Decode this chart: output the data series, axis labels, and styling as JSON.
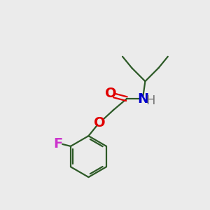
{
  "background_color": "#ebebeb",
  "bond_color": "#2d5a27",
  "O_color": "#e00000",
  "N_color": "#0000cc",
  "F_color": "#cc33cc",
  "H_color": "#777777",
  "font_size": 14,
  "line_width": 1.6,
  "figsize": [
    3.0,
    3.0
  ],
  "dpi": 100,
  "xlim": [
    0,
    10
  ],
  "ylim": [
    0,
    10
  ]
}
